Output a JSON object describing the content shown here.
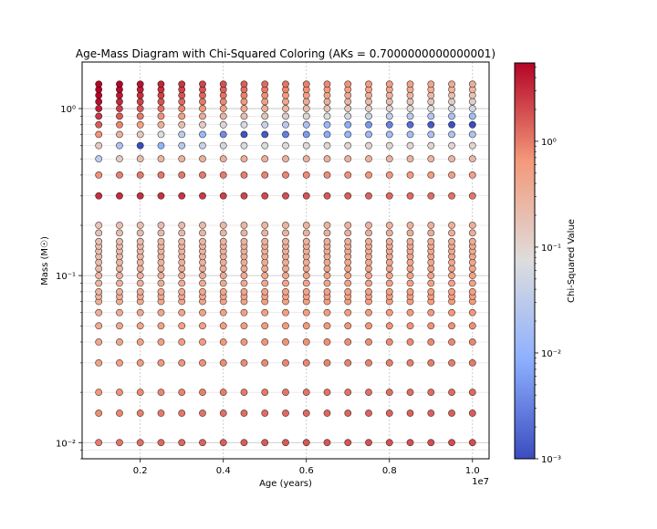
{
  "chart_data": {
    "type": "scatter",
    "title": "Age-Mass Diagram with Chi-Squared Coloring (AKs = 0.7000000000000001)",
    "xlabel": "Age (years)",
    "ylabel": "Mass (M☉)",
    "x_offset_label": "1e7",
    "x_scale_factor": 10000000,
    "y_scale": "log",
    "grid": true,
    "xlim": [
      600000,
      10400000
    ],
    "ylim": [
      0.008,
      1.9
    ],
    "x_ticks": [
      2000000,
      4000000,
      6000000,
      8000000,
      10000000
    ],
    "x_tick_labels": [
      "0.2",
      "0.4",
      "0.6",
      "0.8",
      "1.0"
    ],
    "y_ticks": [
      0.01,
      0.1,
      1
    ],
    "y_tick_labels": [
      "10⁻²",
      "10⁻¹",
      "10⁰"
    ],
    "ages": [
      1000000,
      1500000,
      2000000,
      2500000,
      3000000,
      3500000,
      4000000,
      4500000,
      5000000,
      5500000,
      6000000,
      6500000,
      7000000,
      7500000,
      8000000,
      8500000,
      9000000,
      9500000,
      10000000
    ],
    "masses": [
      0.01,
      0.015,
      0.02,
      0.03,
      0.04,
      0.05,
      0.06,
      0.07,
      0.075,
      0.08,
      0.09,
      0.1,
      0.11,
      0.12,
      0.13,
      0.14,
      0.15,
      0.16,
      0.18,
      0.2,
      0.3,
      0.4,
      0.5,
      0.6,
      0.7,
      0.8,
      0.9,
      1.0,
      1.1,
      1.2,
      1.3,
      1.4
    ],
    "colorbar": {
      "label": "Chi-Squared Value",
      "scale": "log",
      "range": [
        0.001,
        5.5
      ],
      "ticks": [
        0.001,
        0.01,
        0.1,
        1
      ],
      "tick_labels": [
        "10⁻³",
        "10⁻²",
        "10⁻¹",
        "10⁰"
      ],
      "colormap": "coolwarm"
    },
    "point_style": {
      "edge_color": "#000000"
    }
  }
}
